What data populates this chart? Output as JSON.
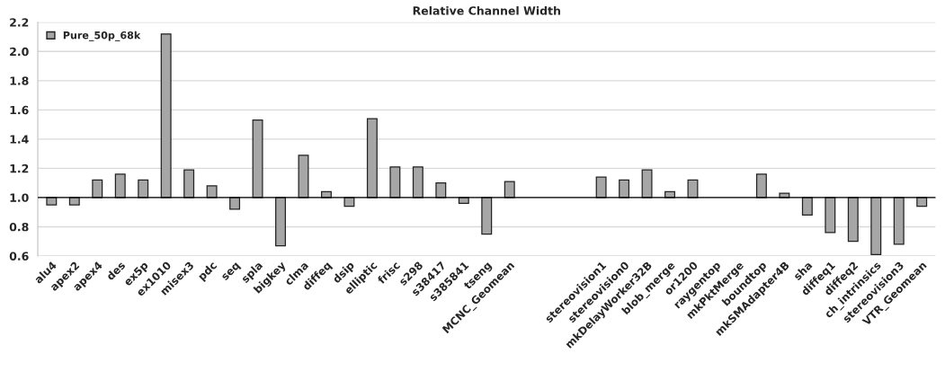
{
  "chart_data": {
    "type": "bar",
    "title": "Relative Channel Width",
    "categories": [
      "alu4",
      "apex2",
      "apex4",
      "des",
      "ex5p",
      "ex1010",
      "misex3",
      "pdc",
      "seq",
      "spla",
      "bigkey",
      "clma",
      "diffeq",
      "dsip",
      "elliptic",
      "frisc",
      "s298",
      "s38417",
      "s385841",
      "tseng",
      "MCNC_Geomean",
      null,
      null,
      null,
      "stereovision1",
      "stereovision0",
      "mkDelayWorker32B",
      "blob_merge",
      "or1200",
      "raygentop",
      "mkPktMerge",
      "boundtop",
      "mkSMAdapter4B",
      "sha",
      "diffeq1",
      "diffeq2",
      "ch_intrinsics",
      "stereovision3",
      "VTR_Geomean"
    ],
    "series": [
      {
        "name": "Pure_50p_68k",
        "color": "#a6a6a6",
        "values": [
          -0.05,
          -0.05,
          0.12,
          0.16,
          0.12,
          1.12,
          0.19,
          0.08,
          -0.08,
          0.53,
          -0.33,
          0.29,
          0.04,
          -0.06,
          0.54,
          0.21,
          0.21,
          0.1,
          -0.04,
          -0.25,
          0.11,
          null,
          null,
          null,
          0.14,
          0.12,
          0.19,
          0.04,
          0.12,
          null,
          null,
          0.16,
          0.03,
          -0.12,
          -0.24,
          -0.3,
          -0.39,
          -0.32,
          -0.06
        ],
        "base": [
          1.0,
          1.0,
          1.0,
          1.0,
          1.0,
          1.0,
          1.0,
          1.0,
          1.0,
          1.0,
          1.0,
          1.0,
          1.0,
          1.0,
          1.0,
          1.0,
          1.0,
          1.0,
          1.0,
          1.0,
          1.0,
          null,
          null,
          null,
          1.0,
          1.0,
          1.0,
          1.0,
          1.0,
          null,
          null,
          1.0,
          1.0,
          1.0,
          1.0,
          1.0,
          1.0,
          1.0,
          1.0
        ]
      }
    ],
    "ylim": [
      0.6,
      2.2
    ],
    "yticks": [
      {
        "value": 0.6,
        "label": "0.6"
      },
      {
        "value": 0.8,
        "label": "0.8"
      },
      {
        "value": 1.0,
        "label": "1.0"
      },
      {
        "value": 1.2,
        "label": "1.2"
      },
      {
        "value": 1.4,
        "label": "1.4"
      },
      {
        "value": 1.6,
        "label": "1.6"
      },
      {
        "value": 1.8,
        "label": "1.8"
      },
      {
        "value": 2.0,
        "label": "2.0"
      },
      {
        "value": 2.2,
        "label": "2.2"
      }
    ],
    "ref_lines": [
      {
        "axis": "y",
        "value": 1.0,
        "color": "#000000"
      }
    ],
    "grid": "y",
    "legend": "top left"
  }
}
